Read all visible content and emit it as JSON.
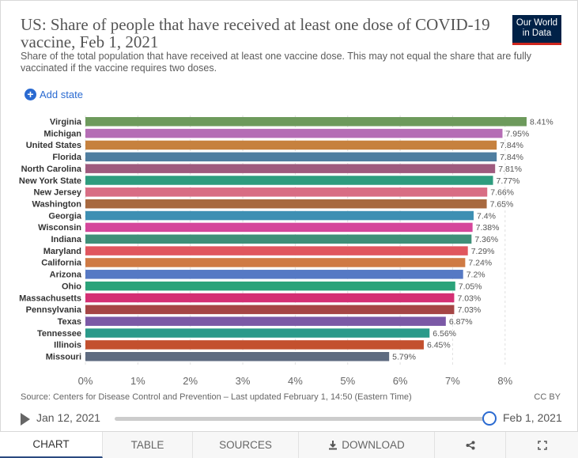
{
  "header": {
    "title": "US: Share of people that have received at least one dose of COVID-19 vaccine, Feb 1, 2021",
    "subtitle": "Share of the total population that have received at least one vaccine dose. This may not equal the share that are fully vaccinated if the vaccine requires two doses.",
    "logo_line1": "Our World",
    "logo_line2": "in Data"
  },
  "controls": {
    "add_state_label": "Add state"
  },
  "chart_data": {
    "type": "bar",
    "orientation": "horizontal",
    "categories": [
      "Virginia",
      "Michigan",
      "United States",
      "Florida",
      "North Carolina",
      "New York State",
      "New Jersey",
      "Washington",
      "Georgia",
      "Wisconsin",
      "Indiana",
      "Maryland",
      "California",
      "Arizona",
      "Ohio",
      "Massachusetts",
      "Pennsylvania",
      "Texas",
      "Tennessee",
      "Illinois",
      "Missouri"
    ],
    "values": [
      8.41,
      7.95,
      7.84,
      7.84,
      7.81,
      7.77,
      7.66,
      7.65,
      7.4,
      7.38,
      7.36,
      7.29,
      7.24,
      7.2,
      7.05,
      7.03,
      7.03,
      6.87,
      6.56,
      6.45,
      5.79
    ],
    "value_labels": [
      "8.41%",
      "7.95%",
      "7.84%",
      "7.84%",
      "7.81%",
      "7.77%",
      "7.66%",
      "7.65%",
      "7.4%",
      "7.38%",
      "7.36%",
      "7.29%",
      "7.24%",
      "7.2%",
      "7.05%",
      "7.03%",
      "7.03%",
      "6.87%",
      "6.56%",
      "6.45%",
      "5.79%"
    ],
    "colors": [
      "#6d9a5c",
      "#b56db5",
      "#c6813e",
      "#4f7ea0",
      "#9e5a7e",
      "#2e9c7e",
      "#d86d84",
      "#a8693f",
      "#3d8fb3",
      "#d5469b",
      "#3f8f78",
      "#e0565e",
      "#cf7a44",
      "#5679c4",
      "#2ba37a",
      "#d42f73",
      "#a54545",
      "#7b59a6",
      "#2a9a8a",
      "#c3502e",
      "#5e6b80"
    ],
    "xlim": [
      0,
      8.41
    ],
    "x_ticks": [
      0,
      1,
      2,
      3,
      4,
      5,
      6,
      7,
      8
    ],
    "x_tick_labels": [
      "0%",
      "1%",
      "2%",
      "3%",
      "4%",
      "5%",
      "6%",
      "7%",
      "8%"
    ],
    "grid": true
  },
  "footer": {
    "source": "Source: Centers for Disease Control and Prevention – Last updated February 1, 14:50 (Eastern Time)",
    "license": "CC BY"
  },
  "timeline": {
    "start_date": "Jan 12, 2021",
    "end_date": "Feb 1, 2021",
    "position": 1.0
  },
  "tabs": [
    {
      "label": "CHART",
      "icon": "",
      "active": true
    },
    {
      "label": "TABLE",
      "icon": "",
      "active": false
    },
    {
      "label": "SOURCES",
      "icon": "",
      "active": false
    },
    {
      "label": "DOWNLOAD",
      "icon": "download-icon",
      "active": false
    },
    {
      "label": "",
      "icon": "share-icon",
      "active": false
    },
    {
      "label": "",
      "icon": "fullscreen-icon",
      "active": false
    }
  ]
}
